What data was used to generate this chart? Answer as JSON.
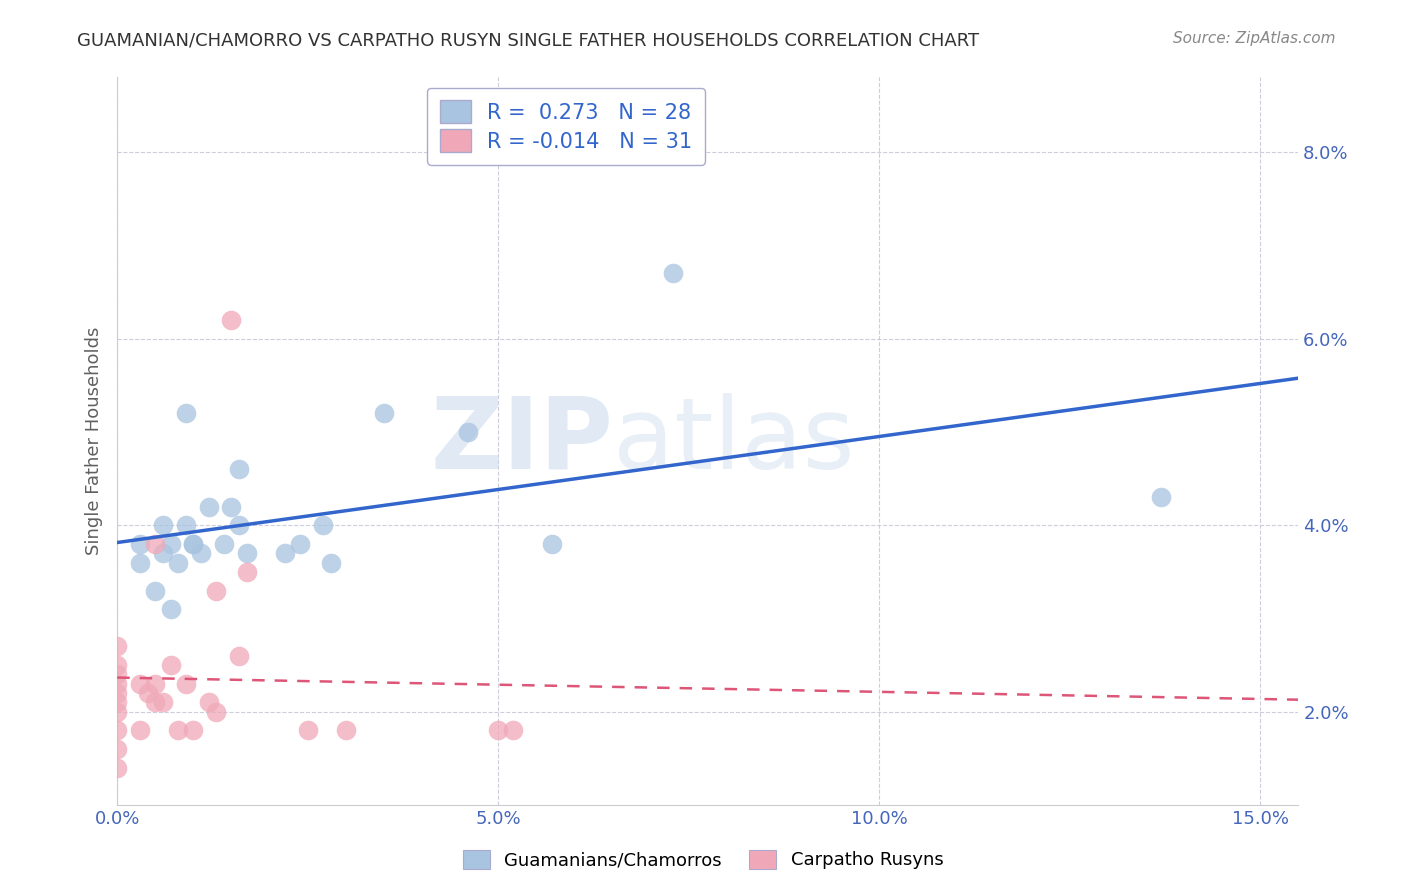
{
  "title": "GUAMANIAN/CHAMORRO VS CARPATHO RUSYN SINGLE FATHER HOUSEHOLDS CORRELATION CHART",
  "source": "Source: ZipAtlas.com",
  "ylabel": "Single Father Households",
  "xlabel": "",
  "xlim": [
    0.0,
    0.155
  ],
  "ylim": [
    0.01,
    0.088
  ],
  "yticks": [
    0.02,
    0.04,
    0.06,
    0.08
  ],
  "ytick_labels": [
    "2.0%",
    "4.0%",
    "6.0%",
    "8.0%"
  ],
  "xticks": [
    0.0,
    0.05,
    0.1,
    0.15
  ],
  "xtick_labels": [
    "0.0%",
    "5.0%",
    "10.0%",
    "15.0%"
  ],
  "blue_R": 0.273,
  "blue_N": 28,
  "pink_R": -0.014,
  "pink_N": 31,
  "blue_color": "#a8c4e0",
  "pink_color": "#f0a8b8",
  "blue_line_color": "#3366cc",
  "pink_line_color": "#dd5577",
  "legend_label_blue": "Guamanians/Chamorros",
  "legend_label_pink": "Carpatho Rusyns",
  "watermark_zip": "ZIP",
  "watermark_atlas": "atlas",
  "background_color": "#ffffff",
  "grid_color": "#c8c8d8",
  "title_color": "#404040",
  "axis_label_color": "#606060",
  "tick_color": "#4466bb",
  "blue_points_x": [
    0.003,
    0.003,
    0.005,
    0.006,
    0.006,
    0.007,
    0.007,
    0.008,
    0.009,
    0.009,
    0.01,
    0.01,
    0.011,
    0.012,
    0.014,
    0.015,
    0.016,
    0.016,
    0.017,
    0.022,
    0.024,
    0.027,
    0.028,
    0.035,
    0.046,
    0.057,
    0.073,
    0.137
  ],
  "blue_points_y": [
    0.036,
    0.038,
    0.033,
    0.037,
    0.04,
    0.031,
    0.038,
    0.036,
    0.04,
    0.052,
    0.038,
    0.038,
    0.037,
    0.042,
    0.038,
    0.042,
    0.04,
    0.046,
    0.037,
    0.037,
    0.038,
    0.04,
    0.036,
    0.052,
    0.05,
    0.038,
    0.067,
    0.043
  ],
  "pink_points_x": [
    0.0,
    0.0,
    0.0,
    0.0,
    0.0,
    0.0,
    0.0,
    0.0,
    0.0,
    0.0,
    0.003,
    0.003,
    0.004,
    0.005,
    0.005,
    0.005,
    0.006,
    0.007,
    0.008,
    0.009,
    0.01,
    0.012,
    0.013,
    0.013,
    0.015,
    0.016,
    0.017,
    0.025,
    0.03,
    0.05,
    0.052
  ],
  "pink_points_y": [
    0.014,
    0.016,
    0.018,
    0.02,
    0.021,
    0.022,
    0.023,
    0.024,
    0.025,
    0.027,
    0.018,
    0.023,
    0.022,
    0.021,
    0.023,
    0.038,
    0.021,
    0.025,
    0.018,
    0.023,
    0.018,
    0.021,
    0.02,
    0.033,
    0.062,
    0.026,
    0.035,
    0.018,
    0.018,
    0.018,
    0.018
  ]
}
